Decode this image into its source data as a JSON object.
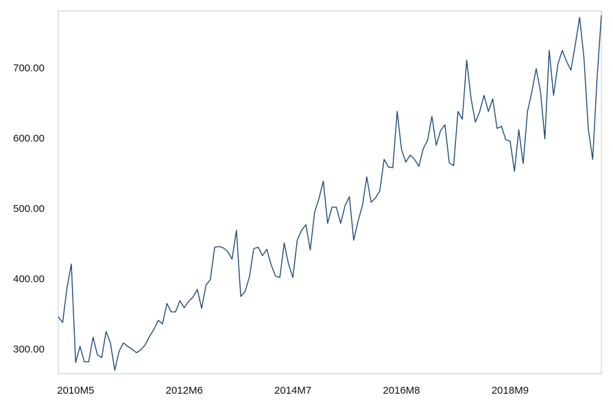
{
  "chart_data": {
    "type": "line",
    "categories": [
      null,
      null,
      null,
      null,
      "2010M5",
      null,
      null,
      null,
      null,
      null,
      null,
      null,
      null,
      null,
      null,
      null,
      null,
      null,
      null,
      null,
      null,
      null,
      null,
      null,
      null,
      null,
      null,
      null,
      null,
      "2012M6",
      null,
      null,
      null,
      null,
      null,
      null,
      null,
      null,
      null,
      null,
      null,
      null,
      null,
      null,
      null,
      null,
      null,
      null,
      null,
      null,
      null,
      null,
      null,
      null,
      "2014M7",
      null,
      null,
      null,
      null,
      null,
      null,
      null,
      null,
      null,
      null,
      null,
      null,
      null,
      null,
      null,
      null,
      null,
      null,
      null,
      null,
      null,
      null,
      null,
      null,
      "2016M8",
      null,
      null,
      null,
      null,
      null,
      null,
      null,
      null,
      null,
      null,
      null,
      null,
      null,
      null,
      null,
      null,
      null,
      null,
      null,
      null,
      null,
      null,
      null,
      null,
      "2018M9",
      null,
      null,
      null,
      null,
      null,
      null,
      null,
      null,
      null,
      null,
      null,
      null,
      null,
      null,
      null,
      null,
      null,
      null,
      null,
      null,
      null
    ],
    "values": [
      347,
      339,
      388,
      422,
      282,
      305,
      283,
      283,
      318,
      293,
      289,
      326,
      310,
      271,
      298,
      310,
      305,
      301,
      296,
      300,
      307,
      319,
      329,
      342,
      337,
      366,
      354,
      354,
      370,
      360,
      369,
      375,
      386,
      359,
      392,
      400,
      446,
      447,
      445,
      440,
      429,
      470,
      376,
      383,
      404,
      444,
      446,
      434,
      443,
      421,
      405,
      403,
      452,
      422,
      403,
      456,
      470,
      478,
      442,
      496,
      515,
      540,
      480,
      503,
      503,
      480,
      505,
      518,
      456,
      483,
      505,
      546,
      510,
      516,
      526,
      571,
      560,
      559,
      639,
      585,
      567,
      577,
      571,
      561,
      586,
      598,
      632,
      591,
      612,
      620,
      566,
      562,
      639,
      628,
      712,
      658,
      624,
      639,
      662,
      639,
      657,
      615,
      618,
      599,
      597,
      554,
      613,
      565,
      639,
      667,
      700,
      667,
      600,
      726,
      662,
      706,
      726,
      710,
      698,
      734,
      773,
      715,
      614,
      571,
      684,
      776
    ],
    "color": "#1b4a7e",
    "ylim": [
      266,
      782
    ],
    "yticks": [
      {
        "value": 300,
        "label": "300.00"
      },
      {
        "value": 400,
        "label": "400.00"
      },
      {
        "value": 500,
        "label": "500.00"
      },
      {
        "value": 600,
        "label": "600.00"
      },
      {
        "value": 700,
        "label": "700.00"
      }
    ],
    "grid": false
  }
}
